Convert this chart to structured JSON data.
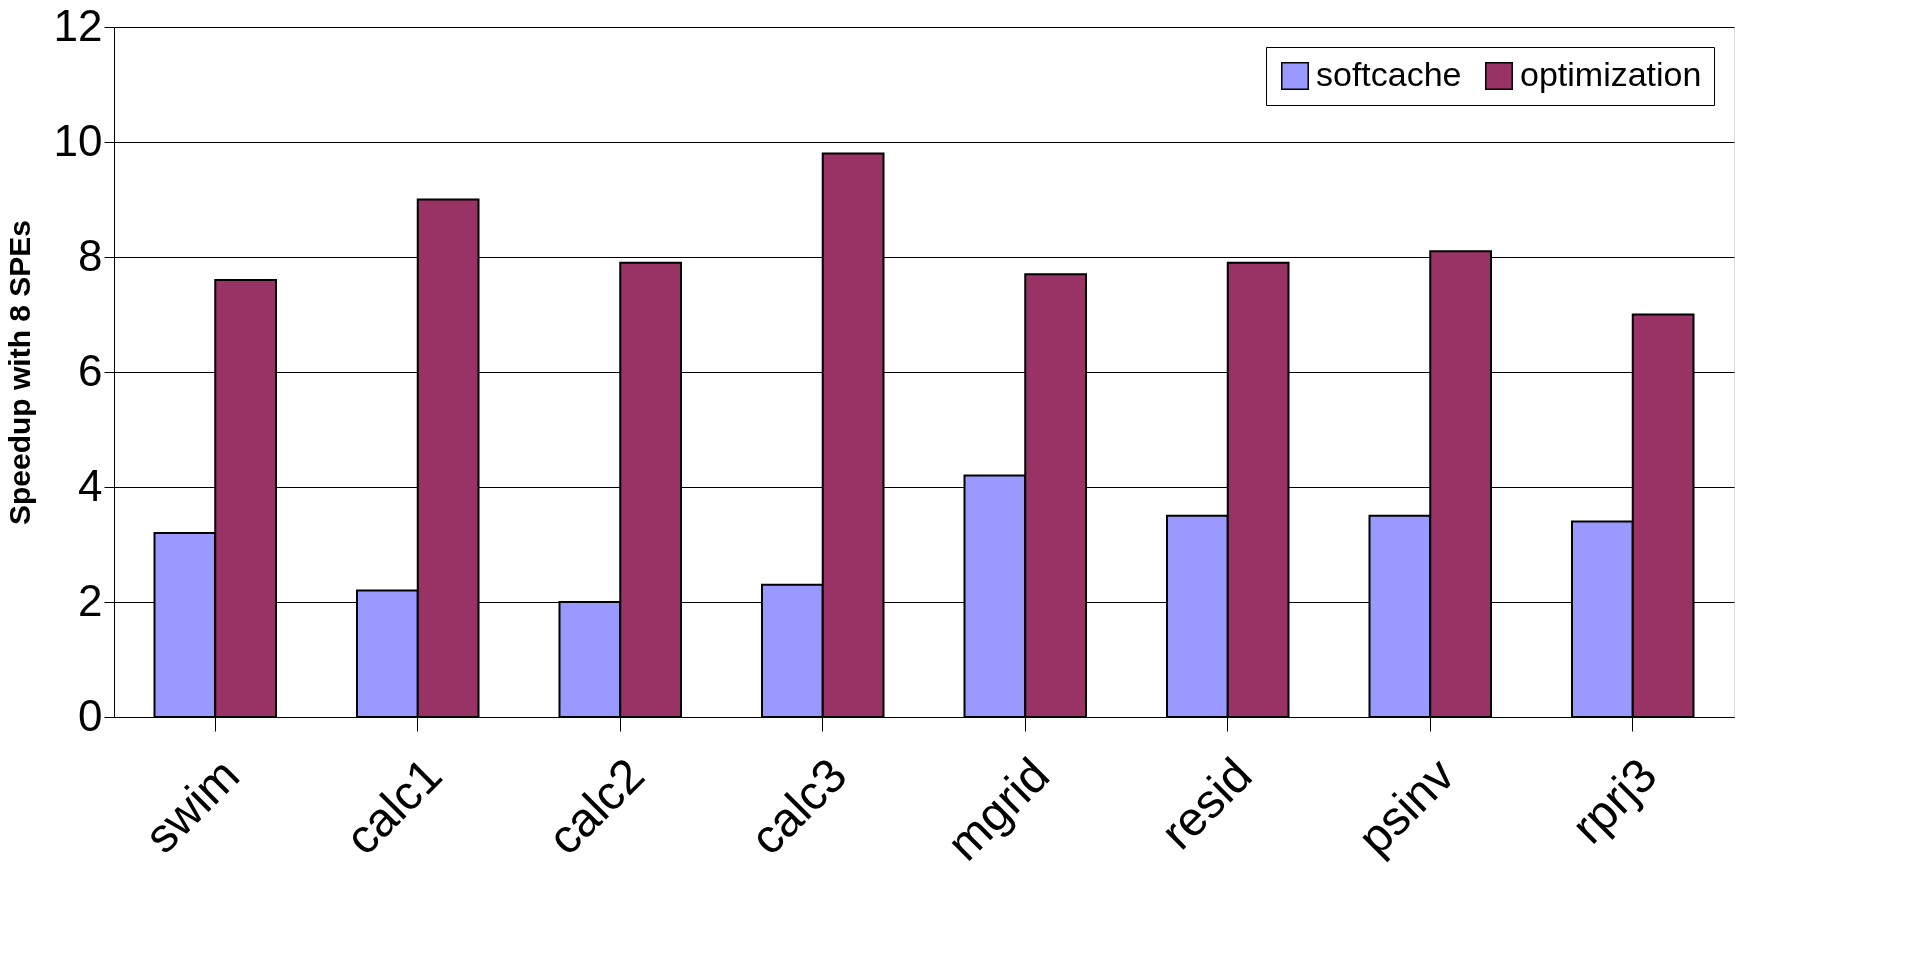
{
  "chart_data": {
    "type": "bar",
    "ylabel": "Speedup with 8 SPEs",
    "categories": [
      "swim",
      "calc1",
      "calc2",
      "calc3",
      "mgrid",
      "resid",
      "psinv",
      "rprj3"
    ],
    "series": [
      {
        "name": "softcache",
        "color": "#9999ff",
        "values": [
          3.2,
          2.2,
          2.0,
          2.3,
          4.2,
          3.5,
          3.5,
          3.4
        ]
      },
      {
        "name": "optimization",
        "color": "#993366",
        "values": [
          7.6,
          9.0,
          7.9,
          9.8,
          7.7,
          7.9,
          8.1,
          7.0
        ]
      }
    ],
    "ylim": [
      0,
      12
    ],
    "yticks": [
      0,
      2,
      4,
      6,
      8,
      10,
      12
    ],
    "grid": "y",
    "legend": "top right"
  }
}
